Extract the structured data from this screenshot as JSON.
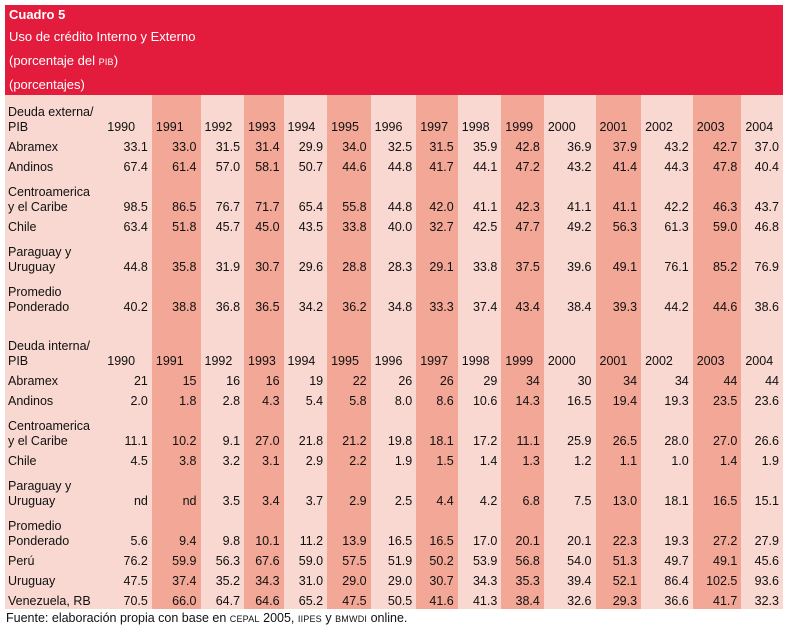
{
  "header": {
    "title": "Cuadro 5",
    "line1": "Uso de crédito Interno y Externo",
    "line2_pre": "(porcentaje del ",
    "line2_sc": "PIB",
    "line2_post": ")",
    "line3": "(porcentajes)"
  },
  "years": [
    "1990",
    "1991",
    "1992",
    "1993",
    "1994",
    "1995",
    "1996",
    "1997",
    "1998",
    "1999",
    "2000",
    "2001",
    "2002",
    "2003",
    "2004"
  ],
  "section1": {
    "header1": "Deuda externa/",
    "header2": "PIB",
    "rows": [
      {
        "l1": "Abramex",
        "l2": "",
        "v": [
          "33.1",
          "33.0",
          "31.5",
          "31.4",
          "29.9",
          "34.0",
          "32.5",
          "31.5",
          "35.9",
          "42.8",
          "36.9",
          "37.9",
          "43.2",
          "42.7",
          "37.0"
        ]
      },
      {
        "l1": "Andinos",
        "l2": "",
        "v": [
          "67.4",
          "61.4",
          "57.0",
          "58.1",
          "50.7",
          "44.6",
          "44.8",
          "41.7",
          "44.1",
          "47.2",
          "43.2",
          "41.4",
          "44.3",
          "47.8",
          "40.4"
        ]
      },
      {
        "l1": "Centroamerica",
        "l2": "y el Caribe",
        "v": [
          "98.5",
          "86.5",
          "76.7",
          "71.7",
          "65.4",
          "55.8",
          "44.8",
          "42.0",
          "41.1",
          "42.3",
          "41.1",
          "41.1",
          "42.2",
          "46.3",
          "43.7"
        ]
      },
      {
        "l1": "Chile",
        "l2": "",
        "v": [
          "63.4",
          "51.8",
          "45.7",
          "45.0",
          "43.5",
          "33.8",
          "40.0",
          "32.7",
          "42.5",
          "47.7",
          "49.2",
          "56.3",
          "61.3",
          "59.0",
          "46.8"
        ]
      },
      {
        "l1": "Paraguay y",
        "l2": "Uruguay",
        "v": [
          "44.8",
          "35.8",
          "31.9",
          "30.7",
          "29.6",
          "28.8",
          "28.3",
          "29.1",
          "33.8",
          "37.5",
          "39.6",
          "49.1",
          "76.1",
          "85.2",
          "76.9"
        ]
      },
      {
        "l1": "Promedio",
        "l2": "Ponderado",
        "v": [
          "40.2",
          "38.8",
          "36.8",
          "36.5",
          "34.2",
          "36.2",
          "34.8",
          "33.3",
          "37.4",
          "43.4",
          "38.4",
          "39.3",
          "44.2",
          "44.6",
          "38.6"
        ]
      }
    ]
  },
  "section2": {
    "header1": "Deuda interna/",
    "header2": "PIB",
    "rows": [
      {
        "l1": "Abramex",
        "l2": "",
        "v": [
          "21",
          "15",
          "16",
          "16",
          "19",
          "22",
          "26",
          "26",
          "29",
          "34",
          "30",
          "34",
          "34",
          "44",
          "44"
        ]
      },
      {
        "l1": "Andinos",
        "l2": "",
        "v": [
          "2.0",
          "1.8",
          "2.8",
          "4.3",
          "5.4",
          "5.8",
          "8.0",
          "8.6",
          "10.6",
          "14.3",
          "16.5",
          "19.4",
          "19.3",
          "23.5",
          "23.6"
        ]
      },
      {
        "l1": "Centroamerica",
        "l2": "y el Caribe",
        "v": [
          "11.1",
          "10.2",
          "9.1",
          "27.0",
          "21.8",
          "21.2",
          "19.8",
          "18.1",
          "17.2",
          "11.1",
          "25.9",
          "26.5",
          "28.0",
          "27.0",
          "26.6"
        ]
      },
      {
        "l1": "Chile",
        "l2": "",
        "v": [
          "4.5",
          "3.8",
          "3.2",
          "3.1",
          "2.9",
          "2.2",
          "1.9",
          "1.5",
          "1.4",
          "1.3",
          "1.2",
          "1.1",
          "1.0",
          "1.4",
          "1.9"
        ]
      },
      {
        "l1": "Paraguay y",
        "l2": "Uruguay",
        "v": [
          "nd",
          "nd",
          "3.5",
          "3.4",
          "3.7",
          "2.9",
          "2.5",
          "4.4",
          "4.2",
          "6.8",
          "7.5",
          "13.0",
          "18.1",
          "16.5",
          "15.1"
        ]
      },
      {
        "l1": "Promedio",
        "l2": "Ponderado",
        "v": [
          "5.6",
          "9.4",
          "9.8",
          "10.1",
          "11.2",
          "13.9",
          "16.5",
          "16.5",
          "17.0",
          "20.1",
          "20.1",
          "22.3",
          "19.3",
          "27.2",
          "27.9"
        ]
      },
      {
        "l1": "Perú",
        "l2": "",
        "v": [
          "76.2",
          "59.9",
          "56.3",
          "67.6",
          "59.0",
          "57.5",
          "51.9",
          "50.2",
          "53.9",
          "56.8",
          "54.0",
          "51.3",
          "49.7",
          "49.1",
          "45.6"
        ]
      },
      {
        "l1": "Uruguay",
        "l2": "",
        "v": [
          "47.5",
          "37.4",
          "35.2",
          "34.3",
          "31.0",
          "29.0",
          "29.0",
          "30.7",
          "34.3",
          "35.3",
          "39.4",
          "52.1",
          "86.4",
          "102.5",
          "93.6"
        ]
      },
      {
        "l1": "Venezuela, RB",
        "l2": "",
        "v": [
          "70.5",
          "66.0",
          "64.7",
          "64.6",
          "65.2",
          "47.5",
          "50.5",
          "41.6",
          "41.3",
          "38.4",
          "32.6",
          "29.3",
          "36.6",
          "41.7",
          "32.3"
        ]
      }
    ]
  },
  "footer": {
    "p1": "Fuente: elaboración  propia con base en ",
    "s1": "CEPAL",
    "p2": " 2005, ",
    "s2": "IIPES",
    "p3": " y ",
    "s3": "BMWDI",
    "p4": " online."
  }
}
